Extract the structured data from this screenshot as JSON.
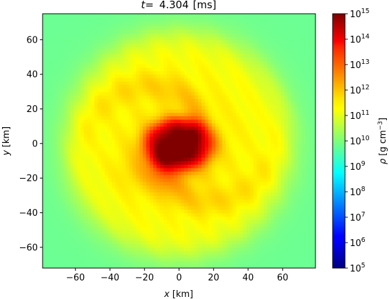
{
  "chart_data": {
    "type": "heatmap",
    "title": {
      "symbol": "t",
      "eq": "=",
      "value": "4.304",
      "unit": "[ms]"
    },
    "xlabel": {
      "symbol": "x",
      "unit": "[km]"
    },
    "ylabel": {
      "symbol": "y",
      "unit": "[km]"
    },
    "xlim": [
      -79,
      79
    ],
    "ylim": [
      -72,
      75
    ],
    "xticks": [
      -60,
      -40,
      -20,
      0,
      20,
      40,
      60
    ],
    "yticks": [
      -60,
      -40,
      -20,
      0,
      20,
      40,
      60
    ],
    "xtick_labels": [
      "−60",
      "−40",
      "−20",
      "0",
      "20",
      "40",
      "60"
    ],
    "ytick_labels": [
      "−60",
      "−40",
      "−20",
      "0",
      "20",
      "40",
      "60"
    ],
    "colorbar": {
      "label": {
        "symbol": "ρ",
        "unit": "[g cm",
        "exp": "−3",
        "close": "]"
      },
      "scale": "log",
      "range_log10": [
        5,
        15
      ],
      "tick_exponents": [
        5,
        6,
        7,
        8,
        9,
        10,
        11,
        12,
        13,
        14,
        15
      ],
      "tick_base": "10",
      "tick_exponent_labels": [
        "5",
        "6",
        "7",
        "8",
        "9",
        "10",
        "11",
        "12",
        "13",
        "14",
        "15"
      ],
      "colormap": "jet"
    },
    "field": {
      "description_units": "log10 rho [g/cm^3]",
      "background_log10": 9.8,
      "core": {
        "center": [
          0,
          0
        ],
        "radius_km": 16,
        "log10_peak": 14.7
      },
      "disk": {
        "radius_km": 65,
        "log10_level": 11.2
      },
      "spiral_arms": 2,
      "rotation": "counter-clockwise"
    }
  }
}
